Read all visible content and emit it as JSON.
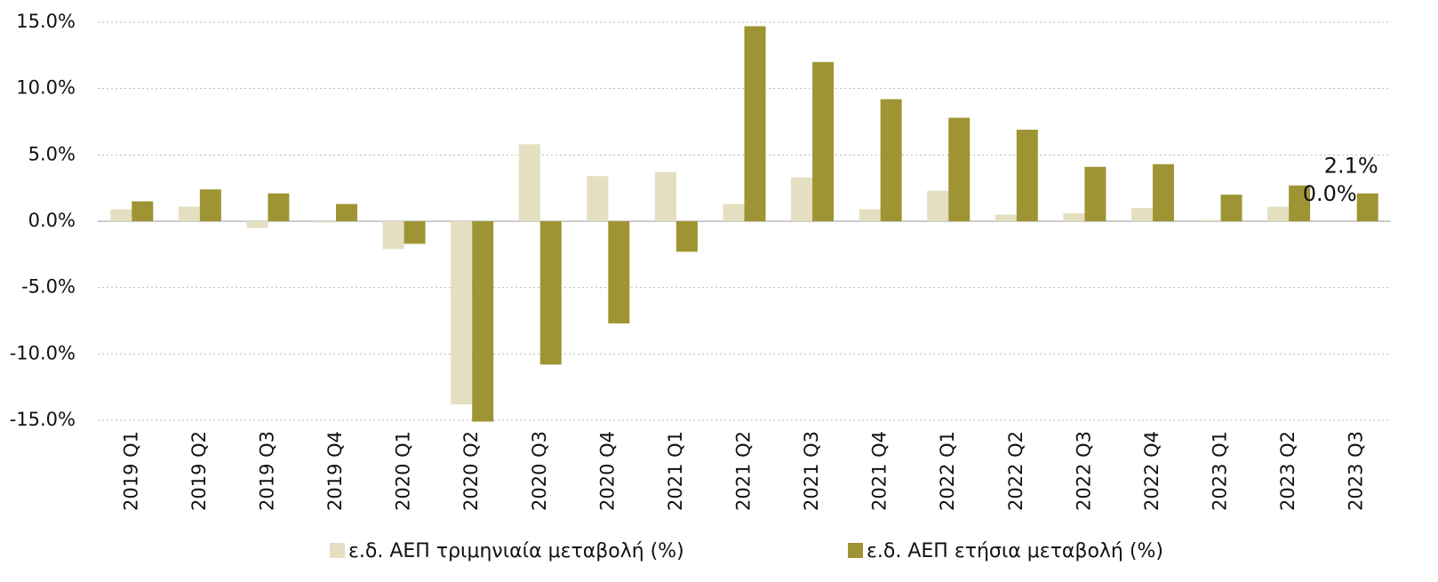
{
  "chart_data": {
    "type": "bar",
    "categories": [
      "2019 Q1",
      "2019 Q2",
      "2019 Q3",
      "2019 Q4",
      "2020 Q1",
      "2020 Q2",
      "2020 Q3",
      "2020 Q4",
      "2021 Q1",
      "2021 Q2",
      "2021 Q3",
      "2021 Q4",
      "2022 Q1",
      "2022 Q2",
      "2022 Q3",
      "2022 Q4",
      "2023 Q1",
      "2023 Q2",
      "2023 Q3"
    ],
    "series": [
      {
        "name": "ε.δ. ΑΕΠ τριμηνιαία μεταβολή (%)",
        "color": "#e3dfc0",
        "values": [
          0.9,
          1.1,
          -0.5,
          -0.1,
          -2.1,
          -13.8,
          5.8,
          3.4,
          3.7,
          1.3,
          3.3,
          0.9,
          2.3,
          0.5,
          0.6,
          1.0,
          0.1,
          1.1,
          0.0
        ],
        "value_labels": [
          null,
          null,
          null,
          null,
          null,
          null,
          null,
          null,
          null,
          null,
          null,
          null,
          null,
          null,
          null,
          null,
          null,
          null,
          "0.0%"
        ]
      },
      {
        "name": "ε.δ. ΑΕΠ ετήσια μεταβολή (%)",
        "color": "#9f9433",
        "values": [
          1.5,
          2.4,
          2.1,
          1.3,
          -1.7,
          -15.1,
          -10.8,
          -7.7,
          -2.3,
          14.7,
          12.0,
          9.2,
          7.8,
          6.9,
          4.1,
          4.3,
          2.0,
          2.7,
          2.1
        ],
        "value_labels": [
          null,
          null,
          null,
          null,
          null,
          null,
          null,
          null,
          null,
          null,
          null,
          null,
          null,
          null,
          null,
          null,
          null,
          null,
          "2.1%"
        ]
      }
    ],
    "ylim": [
      -15,
      15
    ],
    "yticks": [
      {
        "value": -15,
        "label": "-15.0%"
      },
      {
        "value": -10,
        "label": "-10.0%"
      },
      {
        "value": -5,
        "label": "-5.0%"
      },
      {
        "value": 0,
        "label": "0.0%"
      },
      {
        "value": 5,
        "label": "5.0%"
      },
      {
        "value": 10,
        "label": "10.0%"
      },
      {
        "value": 15,
        "label": "15.0%"
      }
    ],
    "grid": true
  }
}
